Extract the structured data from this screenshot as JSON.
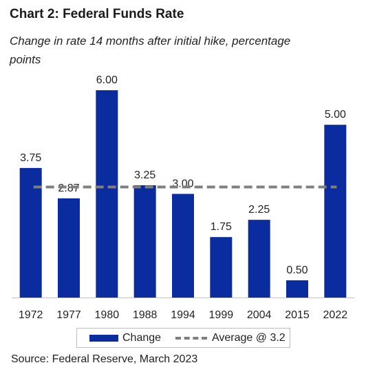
{
  "title": "Chart 2: Federal Funds Rate",
  "subtitle": "Change in rate 14 months after initial hike, percentage points",
  "source": "Source: Federal Reserve, March 2023",
  "legend": {
    "bar_label": "Change",
    "line_label": "Average @ 3.2"
  },
  "colors": {
    "bar": "#0a2c9e",
    "average_line": "#7f7f7f",
    "axis": "#bfbfbf"
  },
  "chart_data": {
    "type": "bar",
    "categories": [
      "1972",
      "1977",
      "1980",
      "1988",
      "1994",
      "1999",
      "2004",
      "2015",
      "2022"
    ],
    "series": [
      {
        "name": "Change",
        "values": [
          3.75,
          2.87,
          6.0,
          3.25,
          3.0,
          1.75,
          2.25,
          0.5,
          5.0
        ],
        "labels": [
          "3.75",
          "2.87",
          "6.00",
          "3.25",
          "3.00",
          "1.75",
          "2.25",
          "0.50",
          "5.00"
        ]
      }
    ],
    "reference_line": {
      "name": "Average @ 3.2",
      "value": 3.2,
      "style": "dashed"
    },
    "title": "Chart 2: Federal Funds Rate",
    "subtitle": "Change in rate 14 months after initial hike, percentage points",
    "ylim": [
      0,
      6.0
    ],
    "grid": false,
    "legend_position": "bottom"
  }
}
